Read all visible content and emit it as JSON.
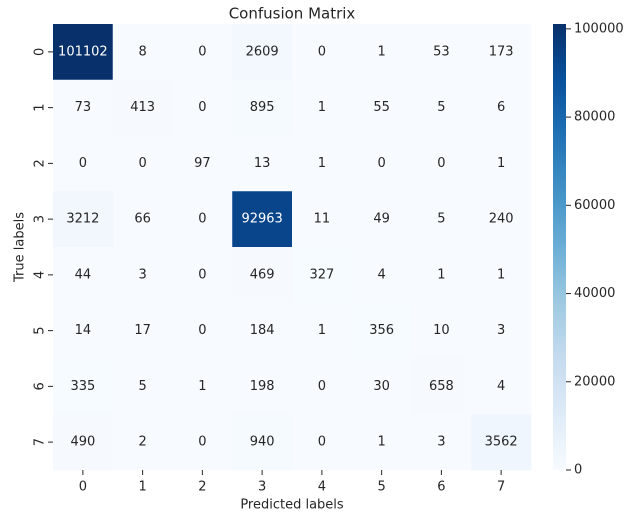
{
  "chart_data": {
    "type": "heatmap",
    "title": "Confusion Matrix",
    "x_label": "Predicted labels",
    "y_label": "True labels",
    "x_categories": [
      "0",
      "1",
      "2",
      "3",
      "4",
      "5",
      "6",
      "7"
    ],
    "y_categories": [
      "0",
      "1",
      "2",
      "3",
      "4",
      "5",
      "6",
      "7"
    ],
    "z": [
      [
        101102,
        8,
        0,
        2609,
        0,
        1,
        53,
        173
      ],
      [
        73,
        413,
        0,
        895,
        1,
        55,
        5,
        6
      ],
      [
        0,
        0,
        97,
        13,
        1,
        0,
        0,
        1
      ],
      [
        3212,
        66,
        0,
        92963,
        11,
        49,
        5,
        240
      ],
      [
        44,
        3,
        0,
        469,
        327,
        4,
        1,
        1
      ],
      [
        14,
        17,
        0,
        184,
        1,
        356,
        10,
        3
      ],
      [
        335,
        5,
        1,
        198,
        0,
        30,
        658,
        4
      ],
      [
        490,
        2,
        0,
        940,
        0,
        1,
        3,
        3562
      ]
    ],
    "colormap": "Blues",
    "zlim": [
      0,
      101102
    ],
    "colorbar_ticks": [
      0,
      20000,
      40000,
      60000,
      80000,
      100000
    ]
  }
}
